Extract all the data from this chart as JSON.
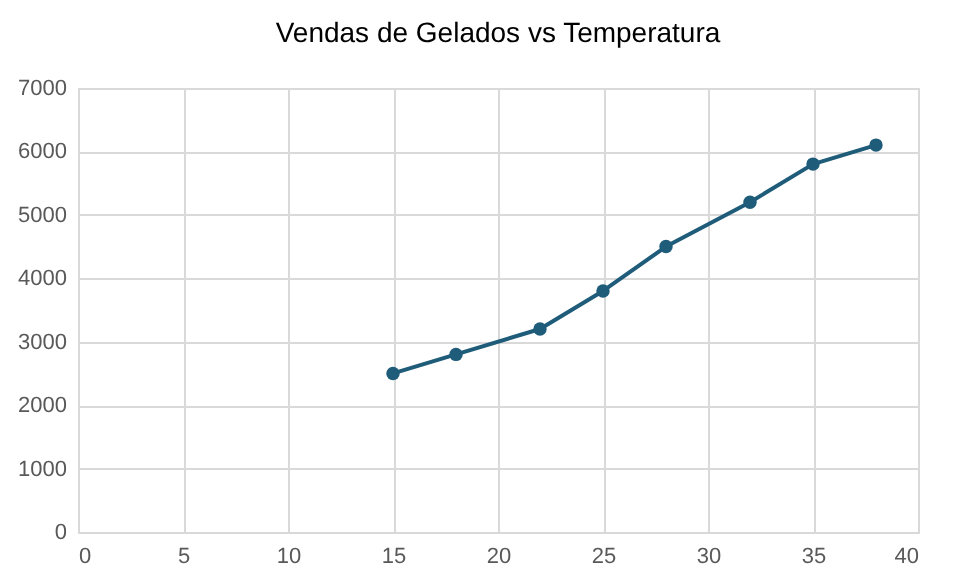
{
  "chart_data": {
    "type": "line",
    "title": "Vendas de Gelados vs Temperatura",
    "x": [
      15,
      18,
      22,
      25,
      28,
      32,
      35,
      38
    ],
    "series": [
      {
        "color": "#1f5c7a",
        "values": [
          2500,
          2800,
          3200,
          3800,
          4500,
          5200,
          5800,
          6100
        ]
      }
    ],
    "xlim": [
      0,
      40
    ],
    "xticks": [
      0,
      5,
      10,
      15,
      20,
      25,
      30,
      35,
      40
    ],
    "ylim": [
      0,
      7000
    ],
    "yticks": [
      0,
      1000,
      2000,
      3000,
      4000,
      5000,
      6000,
      7000
    ],
    "grid": true,
    "marker": "circle",
    "line_style": "solid"
  }
}
